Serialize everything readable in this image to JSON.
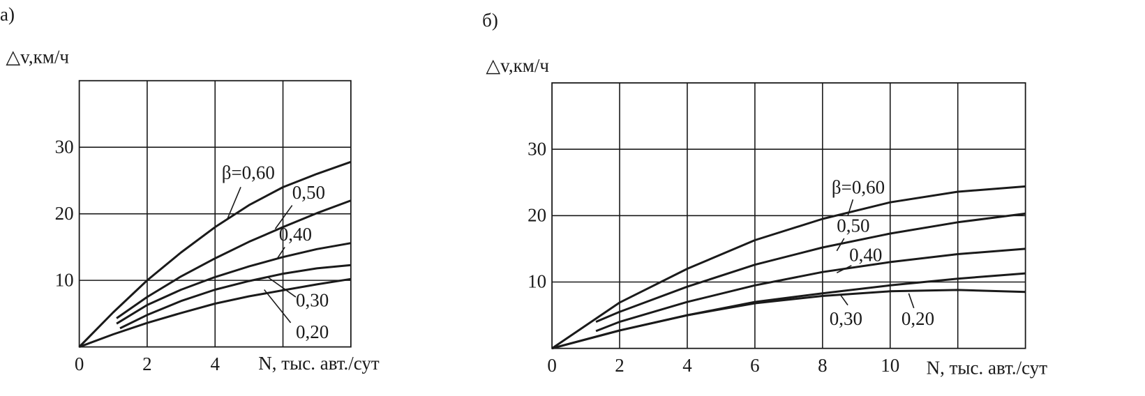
{
  "chart_data": [
    {
      "type": "line",
      "title": "а)",
      "ylabel": "△v,км/ч",
      "xlabel": "N, тыс. авт./сут",
      "xlim": [
        0,
        8
      ],
      "xticks": [
        0,
        2,
        4
      ],
      "xgrid": [
        2,
        4,
        6
      ],
      "ylim": [
        0,
        40
      ],
      "yticks": [
        10,
        20,
        30
      ],
      "grid": true,
      "series": [
        {
          "name": "β=0,60",
          "color": "#1a1a1a",
          "x": [
            0,
            1,
            2,
            3,
            4,
            5,
            6,
            7,
            8
          ],
          "values": [
            0,
            5.2,
            10,
            14.2,
            18,
            21.3,
            24,
            26,
            27.8
          ]
        },
        {
          "name": "0,50",
          "color": "#1a1a1a",
          "x": [
            1.1,
            2,
            3,
            4,
            5,
            6,
            7,
            8
          ],
          "values": [
            4.3,
            7.5,
            10.6,
            13.3,
            15.8,
            18,
            20.1,
            22
          ]
        },
        {
          "name": "0,40",
          "color": "#1a1a1a",
          "x": [
            1.1,
            2,
            3,
            4,
            5,
            6,
            7,
            8
          ],
          "values": [
            3.5,
            6.3,
            8.6,
            10.5,
            12.1,
            13.5,
            14.7,
            15.6
          ]
        },
        {
          "name": "0,30",
          "color": "#1a1a1a",
          "x": [
            1.2,
            2,
            3,
            4,
            5,
            6,
            7,
            8
          ],
          "values": [
            2.8,
            4.8,
            6.9,
            8.6,
            9.9,
            11,
            11.8,
            12.3
          ]
        },
        {
          "name": "0,20",
          "color": "#1a1a1a",
          "x": [
            0,
            1,
            2,
            3,
            4,
            5,
            6,
            7,
            8
          ],
          "values": [
            0,
            1.9,
            3.6,
            5.1,
            6.5,
            7.6,
            8.5,
            9.4,
            10.2
          ]
        }
      ]
    },
    {
      "type": "line",
      "title": "б)",
      "ylabel": "△v,км/ч",
      "xlabel": "N, тыс. авт./сут",
      "xlim": [
        0,
        14
      ],
      "xticks": [
        0,
        2,
        4,
        6,
        8,
        10
      ],
      "xgrid": [
        2,
        4,
        6,
        8,
        10,
        12
      ],
      "ylim": [
        0,
        40
      ],
      "yticks": [
        10,
        20,
        30
      ],
      "grid": true,
      "series": [
        {
          "name": "β=0,60",
          "color": "#1a1a1a",
          "x": [
            0,
            2,
            4,
            6,
            8,
            10,
            12,
            14
          ],
          "values": [
            0,
            6.9,
            12,
            16.3,
            19.5,
            22,
            23.6,
            24.4
          ]
        },
        {
          "name": "0,50",
          "color": "#1a1a1a",
          "x": [
            1.3,
            2,
            4,
            6,
            8,
            10,
            12,
            14
          ],
          "values": [
            4,
            5.5,
            9.3,
            12.6,
            15.2,
            17.3,
            19,
            20.3
          ]
        },
        {
          "name": "0,40",
          "color": "#1a1a1a",
          "x": [
            1.3,
            2,
            4,
            6,
            8,
            10,
            12,
            14
          ],
          "values": [
            2.6,
            4,
            7,
            9.5,
            11.5,
            13,
            14.2,
            15
          ]
        },
        {
          "name": "0,30",
          "color": "#1a1a1a",
          "x": [
            0,
            2,
            4,
            6,
            8,
            10,
            12,
            14
          ],
          "values": [
            0,
            2.7,
            5,
            7,
            8.3,
            9.5,
            10.5,
            11.3
          ]
        },
        {
          "name": "0,20",
          "color": "#1a1a1a",
          "x": [
            0,
            2,
            4,
            6,
            8,
            10,
            12,
            14
          ],
          "values": [
            0,
            2.7,
            5,
            6.8,
            7.9,
            8.6,
            8.8,
            8.5
          ]
        }
      ]
    }
  ]
}
